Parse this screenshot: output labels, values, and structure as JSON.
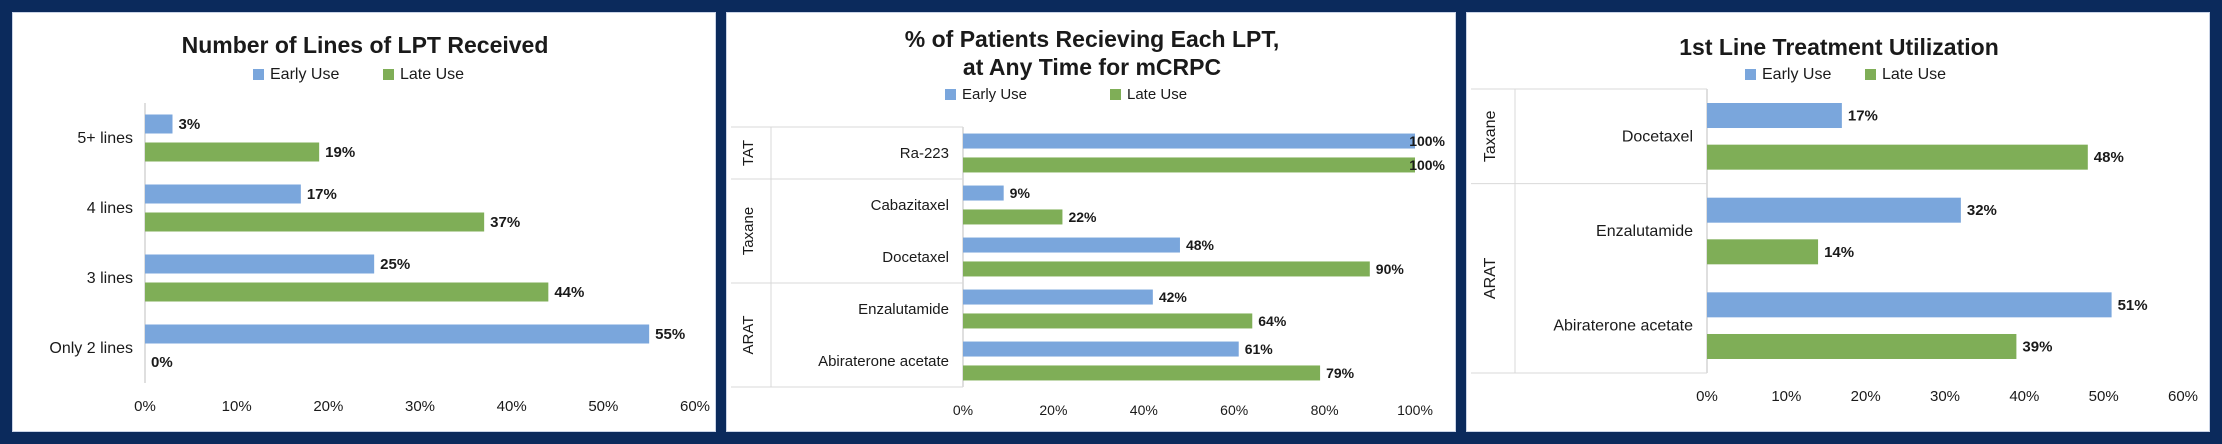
{
  "colors": {
    "early": "#7aa6dc",
    "late": "#7fae57",
    "gridline": "#d9d9d9",
    "axis": "#bfbfbf"
  },
  "chart_data": [
    {
      "type": "bar",
      "orientation": "horizontal",
      "title": "Number of Lines of LPT Received",
      "categories": [
        "5+ lines",
        "4 lines",
        "3 lines",
        "Only 2 lines"
      ],
      "series": [
        {
          "name": "Early Use",
          "values": [
            3,
            17,
            25,
            55
          ]
        },
        {
          "name": "Late Use",
          "values": [
            19,
            37,
            44,
            0
          ]
        }
      ],
      "value_labels": {
        "Early Use": [
          "3%",
          "17%",
          "25%",
          "55%"
        ],
        "Late Use": [
          "19%",
          "37%",
          "44%",
          "0%"
        ]
      },
      "xlim": [
        0,
        60
      ],
      "xticks": [
        "0%",
        "10%",
        "20%",
        "30%",
        "40%",
        "50%",
        "60%"
      ],
      "legend": "top",
      "grid": false
    },
    {
      "type": "bar",
      "orientation": "horizontal",
      "title": "% of Patients Recieving Each LPT,",
      "subtitle": "at Any Time for mCRPC",
      "categories": [
        "Ra-223",
        "Cabazitaxel",
        "Docetaxel",
        "Enzalutamide",
        "Abiraterone acetate"
      ],
      "groups": [
        {
          "label": "TAT",
          "categories": [
            "Ra-223"
          ]
        },
        {
          "label": "Taxane",
          "categories": [
            "Cabazitaxel",
            "Docetaxel"
          ]
        },
        {
          "label": "ARAT",
          "categories": [
            "Enzalutamide",
            "Abiraterone acetate"
          ]
        }
      ],
      "series": [
        {
          "name": "Early Use",
          "values": [
            100,
            9,
            48,
            42,
            61
          ]
        },
        {
          "name": "Late Use",
          "values": [
            100,
            22,
            90,
            64,
            79
          ]
        }
      ],
      "value_labels": {
        "Early Use": [
          "100%",
          "9%",
          "48%",
          "42%",
          "61%"
        ],
        "Late Use": [
          "100%",
          "22%",
          "90%",
          "64%",
          "79%"
        ]
      },
      "xlim": [
        0,
        100
      ],
      "xticks": [
        "0%",
        "20%",
        "40%",
        "60%",
        "80%",
        "100%"
      ],
      "legend": "top",
      "grid": false
    },
    {
      "type": "bar",
      "orientation": "horizontal",
      "title": "1st Line Treatment Utilization",
      "categories": [
        "Docetaxel",
        "Enzalutamide",
        "Abiraterone acetate"
      ],
      "groups": [
        {
          "label": "Taxane",
          "categories": [
            "Docetaxel"
          ]
        },
        {
          "label": "ARAT",
          "categories": [
            "Enzalutamide",
            "Abiraterone acetate"
          ]
        }
      ],
      "series": [
        {
          "name": "Early Use",
          "values": [
            17,
            32,
            51
          ]
        },
        {
          "name": "Late Use",
          "values": [
            48,
            14,
            39
          ]
        }
      ],
      "value_labels": {
        "Early Use": [
          "17%",
          "32%",
          "51%"
        ],
        "Late Use": [
          "48%",
          "14%",
          "39%"
        ]
      },
      "xlim": [
        0,
        60
      ],
      "xticks": [
        "0%",
        "10%",
        "20%",
        "30%",
        "40%",
        "50%",
        "60%"
      ],
      "legend": "top",
      "grid": false
    }
  ]
}
